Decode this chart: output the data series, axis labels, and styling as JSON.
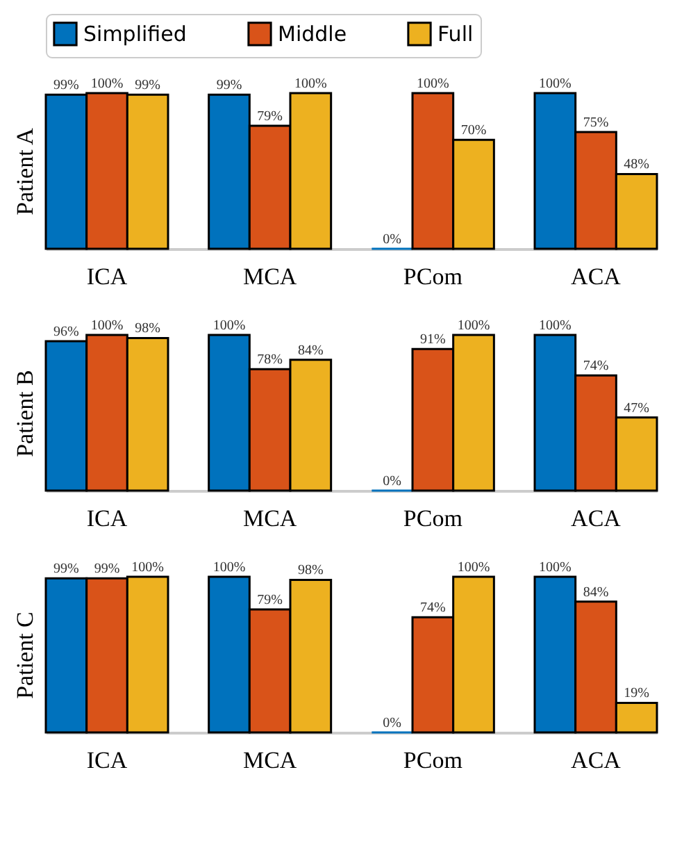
{
  "chart_data": [
    {
      "type": "bar",
      "ylabel": "Patient A",
      "categories": [
        "ICA",
        "MCA",
        "PCom",
        "ACA"
      ],
      "legend": "top",
      "series": [
        {
          "name": "Simplified",
          "color": "#0072bd",
          "values": [
            99,
            99,
            0,
            100
          ],
          "value_labels": [
            "99%",
            "99%",
            "0%",
            "100%"
          ]
        },
        {
          "name": "Middle",
          "color": "#d95319",
          "values": [
            100,
            79,
            100,
            75
          ],
          "value_labels": [
            "100%",
            "79%",
            "100%",
            "75%"
          ]
        },
        {
          "name": "Full",
          "color": "#edb120",
          "values": [
            99,
            100,
            70,
            48
          ],
          "value_labels": [
            "99%",
            "100%",
            "70%",
            "48%"
          ]
        }
      ]
    },
    {
      "type": "bar",
      "ylabel": "Patient B",
      "categories": [
        "ICA",
        "MCA",
        "PCom",
        "ACA"
      ],
      "series": [
        {
          "color": "#0072bd",
          "values": [
            96,
            100,
            0,
            100
          ],
          "value_labels": [
            "96%",
            "100%",
            "0%",
            "100%"
          ]
        },
        {
          "color": "#d95319",
          "values": [
            100,
            78,
            91,
            74
          ],
          "value_labels": [
            "100%",
            "78%",
            "91%",
            "74%"
          ]
        },
        {
          "color": "#edb120",
          "values": [
            98,
            84,
            100,
            47
          ],
          "value_labels": [
            "98%",
            "84%",
            "100%",
            "47%"
          ]
        }
      ]
    },
    {
      "type": "bar",
      "ylabel": "Patient C",
      "categories": [
        "ICA",
        "MCA",
        "PCom",
        "ACA"
      ],
      "series": [
        {
          "color": "#0072bd",
          "values": [
            99,
            100,
            0,
            100
          ],
          "value_labels": [
            "99%",
            "100%",
            "0%",
            "100%"
          ]
        },
        {
          "color": "#d95319",
          "values": [
            99,
            79,
            74,
            84
          ],
          "value_labels": [
            "99%",
            "79%",
            "74%",
            "84%"
          ]
        },
        {
          "color": "#edb120",
          "values": [
            100,
            98,
            100,
            19
          ],
          "value_labels": [
            "100%",
            "98%",
            "100%",
            "19%"
          ]
        }
      ]
    }
  ]
}
